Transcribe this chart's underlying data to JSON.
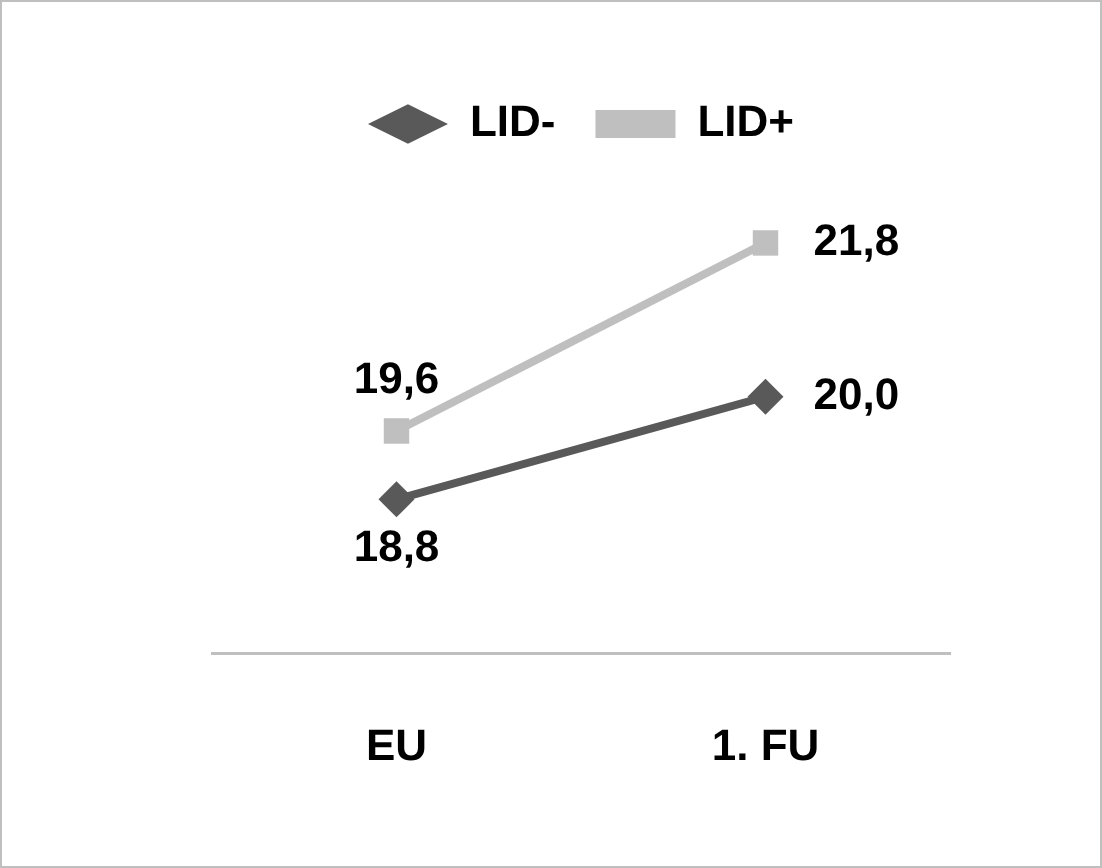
{
  "chart_data": {
    "type": "line",
    "categories": [
      "EU",
      "1. FU"
    ],
    "series": [
      {
        "name": "LID-",
        "color": "#595959",
        "values": [
          18.8,
          20.0
        ],
        "value_labels": [
          "18,8",
          "20,0"
        ],
        "marker": "diamond"
      },
      {
        "name": "LID+",
        "color": "#bfbfbf",
        "values": [
          19.6,
          21.8
        ],
        "value_labels": [
          "19,6",
          "21,8"
        ],
        "marker": "square"
      }
    ],
    "legend": "top",
    "grid": false,
    "tick_labels": "x",
    "line_style": "solid"
  }
}
